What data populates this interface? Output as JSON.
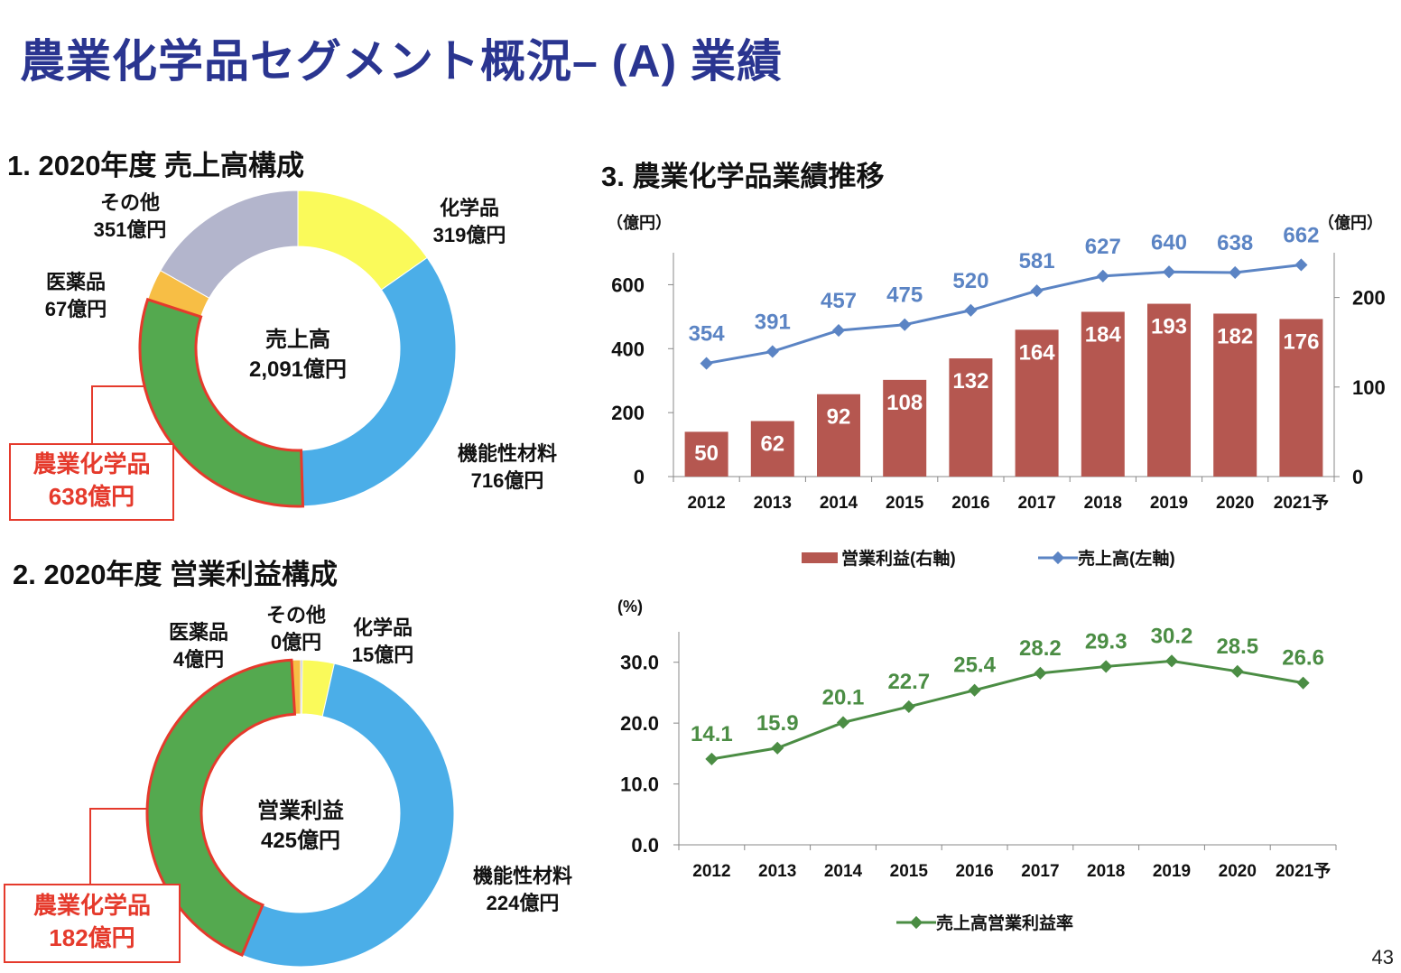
{
  "title": "農業化学品セグメント概況– (A) 業績",
  "page_number": "43",
  "colors": {
    "title": "#2a3590",
    "agrochem": "#54a94f",
    "functional": "#4baee8",
    "chemicals": "#fafa5a",
    "pharma": "#f7be45",
    "other": "#b3b5cc",
    "highlight": "#e53a2c",
    "bar": "#b55750",
    "sales_line": "#5b84c4",
    "margin_line": "#4b8d44"
  },
  "section1": {
    "title": "1. 2020年度 売上高構成",
    "center_line1": "売上高",
    "center_line2": "2,091億円",
    "slices": [
      {
        "name": "化学品",
        "value_label": "319億円",
        "value": 319
      },
      {
        "name": "機能性材料",
        "value_label": "716億円",
        "value": 716
      },
      {
        "name": "農業化学品",
        "value_label": "638億円",
        "value": 638
      },
      {
        "name": "医薬品",
        "value_label": "67億円",
        "value": 67
      },
      {
        "name": "その他",
        "value_label": "351億円",
        "value": 351
      }
    ]
  },
  "section2": {
    "title": "2. 2020年度 営業利益構成",
    "center_line1": "営業利益",
    "center_line2": "425億円",
    "slices": [
      {
        "name": "化学品",
        "value_label": "15億円",
        "value": 15
      },
      {
        "name": "機能性材料",
        "value_label": "224億円",
        "value": 224
      },
      {
        "name": "農業化学品",
        "value_label": "182億円",
        "value": 182
      },
      {
        "name": "医薬品",
        "value_label": "4億円",
        "value": 4
      },
      {
        "name": "その他",
        "value_label": "0億円",
        "value": 0
      }
    ]
  },
  "section3": {
    "title": "3. 農業化学品業績推移",
    "unit_left": "（億円）",
    "unit_right": "（億円）",
    "legend_profit": "営業利益(右軸)",
    "legend_sales": "売上高(左軸)",
    "unit_margin": "(%)",
    "legend_margin": "売上高営業利益率"
  },
  "chart_data": [
    {
      "type": "pie",
      "title": "1. 2020年度 売上高構成",
      "categories": [
        "化学品",
        "機能性材料",
        "農業化学品",
        "医薬品",
        "その他"
      ],
      "values": [
        319,
        716,
        638,
        67,
        351
      ],
      "total_label": "2,091億円"
    },
    {
      "type": "pie",
      "title": "2. 2020年度 営業利益構成",
      "categories": [
        "化学品",
        "機能性材料",
        "農業化学品",
        "医薬品",
        "その他"
      ],
      "values": [
        15,
        224,
        182,
        4,
        0
      ],
      "total_label": "425億円"
    },
    {
      "type": "bar",
      "title": "3. 農業化学品業績推移",
      "categories": [
        "2012",
        "2013",
        "2014",
        "2015",
        "2016",
        "2017",
        "2018",
        "2019",
        "2020",
        "2021予"
      ],
      "series": [
        {
          "name": "営業利益(右軸)",
          "type": "bar",
          "axis": "right",
          "values": [
            50,
            62,
            92,
            108,
            132,
            164,
            184,
            193,
            182,
            176
          ]
        },
        {
          "name": "売上高(左軸)",
          "type": "line",
          "axis": "left",
          "values": [
            354,
            391,
            457,
            475,
            520,
            581,
            627,
            640,
            638,
            662
          ]
        }
      ],
      "ylim_left": [
        0,
        700
      ],
      "yticks_left": [
        "0",
        "200",
        "400",
        "600"
      ],
      "ylim_right": [
        0,
        250
      ],
      "yticks_right": [
        "0",
        "100",
        "200"
      ],
      "ylabel_left": "（億円）",
      "ylabel_right": "（億円）"
    },
    {
      "type": "line",
      "title": "売上高営業利益率",
      "categories": [
        "2012",
        "2013",
        "2014",
        "2015",
        "2016",
        "2017",
        "2018",
        "2019",
        "2020",
        "2021予"
      ],
      "series": [
        {
          "name": "売上高営業利益率",
          "values": [
            14.1,
            15.9,
            20.1,
            22.7,
            25.4,
            28.2,
            29.3,
            30.2,
            28.5,
            26.6
          ]
        }
      ],
      "ylim": [
        0,
        35
      ],
      "yticks": [
        "0.0",
        "10.0",
        "20.0",
        "30.0"
      ],
      "ylabel": "(%)"
    }
  ]
}
